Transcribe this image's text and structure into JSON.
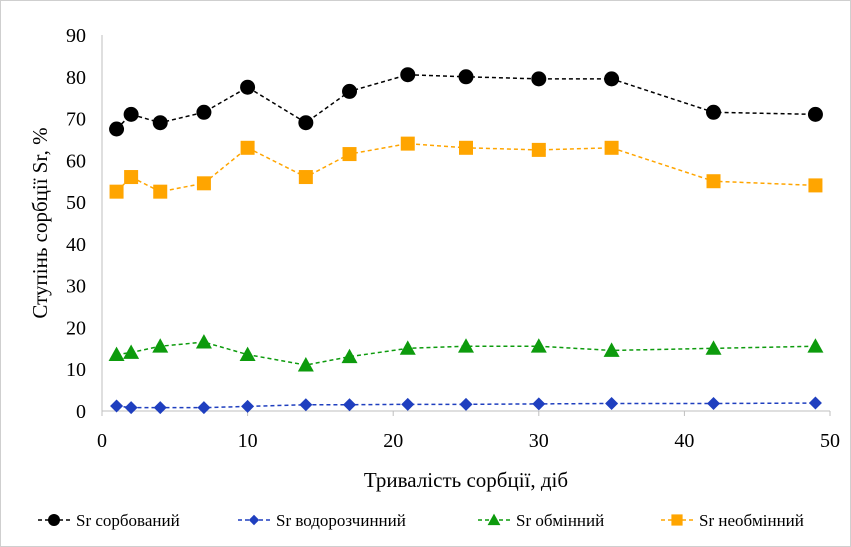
{
  "chart_data": {
    "type": "scatter",
    "xlabel": "Тривалість сорбції, діб",
    "ylabel": "Ступінь сорбції Sr, %",
    "xlim": [
      0,
      50
    ],
    "ylim": [
      0,
      90
    ],
    "x_ticks": [
      0,
      10,
      20,
      30,
      40,
      50
    ],
    "y_ticks": [
      0,
      10,
      20,
      30,
      40,
      50,
      60,
      70,
      80,
      90
    ],
    "grid": false,
    "legend_position": "bottom",
    "x": [
      1,
      2,
      4,
      7,
      10,
      14,
      17,
      21,
      25,
      30,
      35,
      42,
      49
    ],
    "series": [
      {
        "name": "Sr сорбований",
        "marker": "circle",
        "color": "#000000",
        "values": [
          67.5,
          71,
          69,
          71.5,
          77.5,
          69,
          76.5,
          80.5,
          80,
          79.5,
          79.5,
          71.5,
          71
        ]
      },
      {
        "name": "Sr водорозчинний",
        "marker": "diamond",
        "color": "#1f3fbf",
        "values": [
          1.2,
          0.8,
          0.8,
          0.8,
          1.1,
          1.5,
          1.5,
          1.6,
          1.6,
          1.7,
          1.8,
          1.8,
          1.9
        ]
      },
      {
        "name": "Sr обмінний",
        "marker": "triangle",
        "color": "#0d9b0d",
        "values": [
          13.5,
          14,
          15.5,
          16.5,
          13.5,
          11,
          13,
          15,
          15.5,
          15.5,
          14.5,
          15,
          15.5
        ]
      },
      {
        "name": "Sr необмінний",
        "marker": "square",
        "color": "#ffa500",
        "values": [
          52.5,
          56,
          52.5,
          54.5,
          63,
          56,
          61.5,
          64,
          63,
          62.5,
          63,
          55,
          54
        ]
      }
    ]
  }
}
